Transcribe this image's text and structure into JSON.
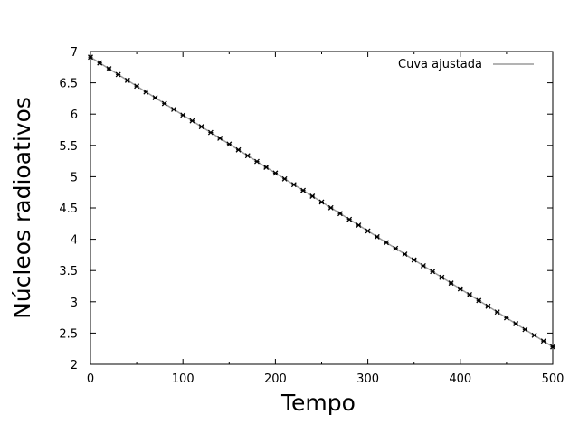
{
  "chart_data": {
    "type": "scatter",
    "title": "",
    "xlabel": "Tempo",
    "ylabel": "Núcleos radioativos",
    "xlim": [
      0,
      500
    ],
    "ylim": [
      2,
      7
    ],
    "xticks": [
      0,
      100,
      200,
      300,
      400,
      500
    ],
    "yticks": [
      2,
      2.5,
      3,
      3.5,
      4,
      4.5,
      5,
      5.5,
      6,
      6.5,
      7
    ],
    "grid": false,
    "legend_position": "top-right",
    "points": {
      "x_start": 0,
      "x_end": 500,
      "x_step": 10,
      "y_start": 6.91,
      "y_end": 2.28,
      "marker_color": "#000000"
    },
    "series": [
      {
        "name": "Cuva ajustada",
        "type": "line",
        "x": [
          0,
          500
        ],
        "y": [
          6.91,
          2.28
        ],
        "color": "#9a9a9a"
      }
    ]
  }
}
